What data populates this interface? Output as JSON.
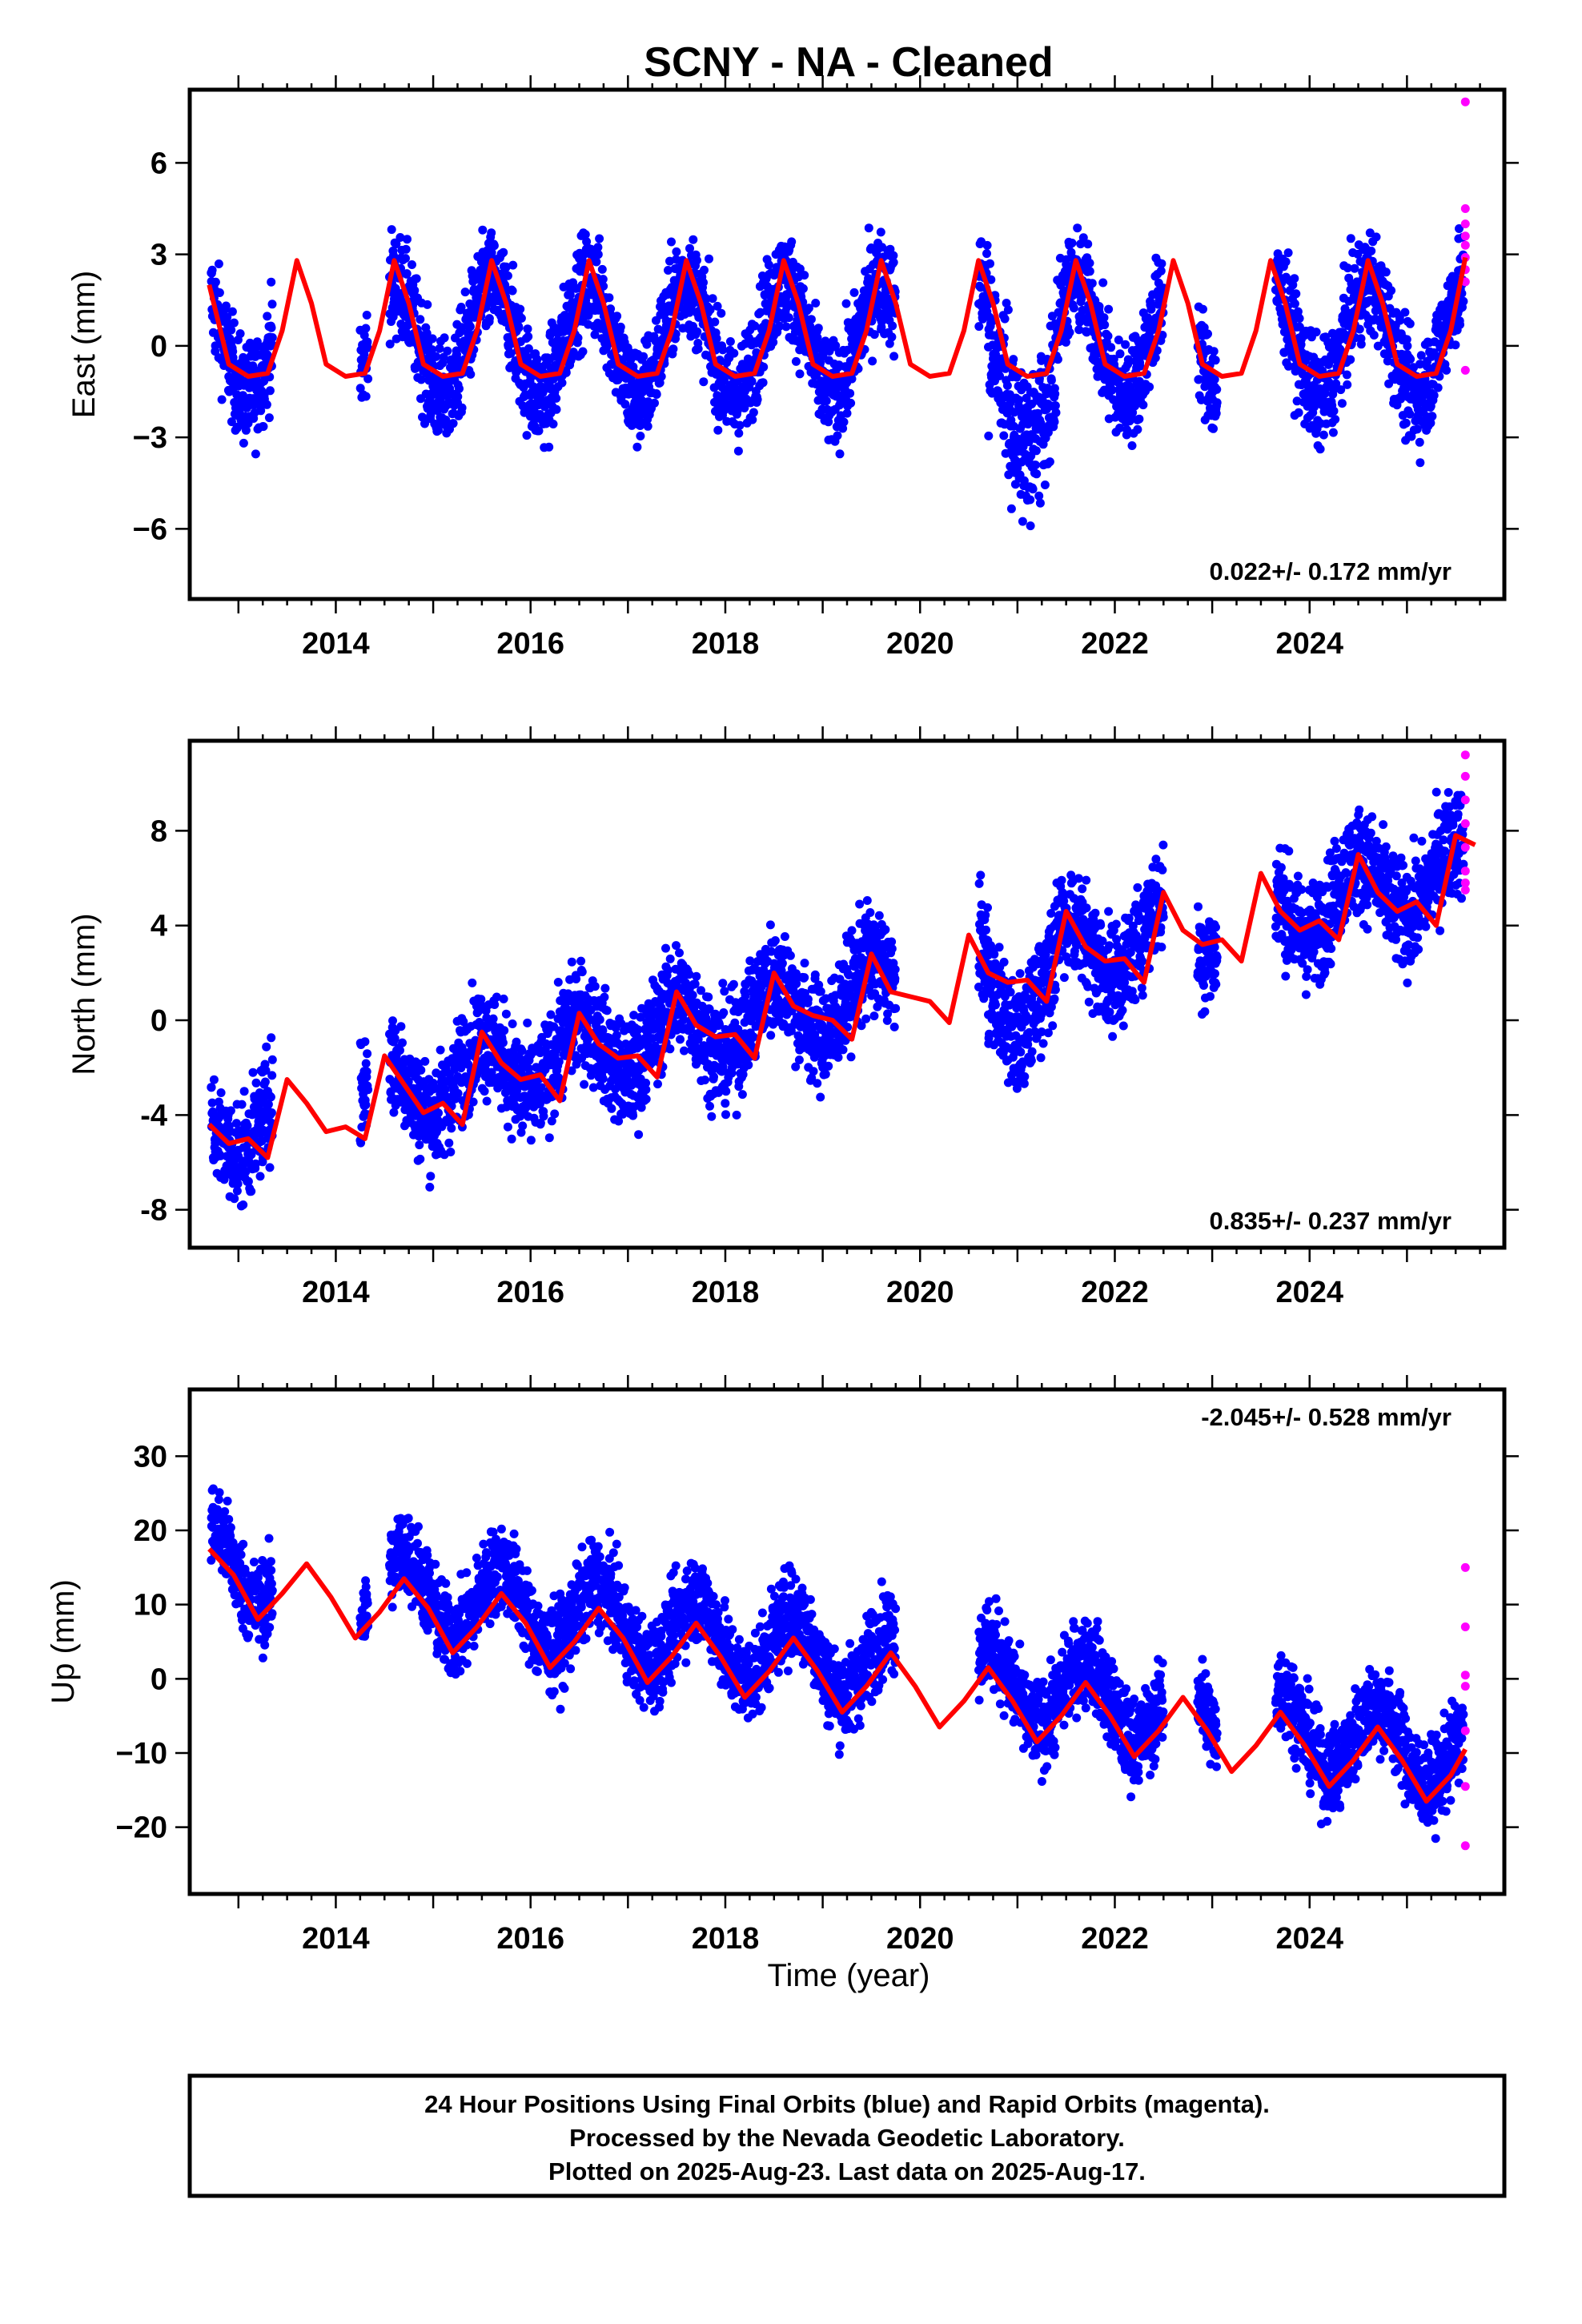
{
  "title": "SCNY  - NA - Cleaned",
  "xlabel": "Time (year)",
  "footer": [
    "24 Hour Positions Using Final Orbits (blue) and Rapid Orbits (magenta).",
    "Processed by the Nevada Geodetic Laboratory.",
    "Plotted on 2025-Aug-23. Last data on 2025-Aug-17."
  ],
  "colors": {
    "final": "#0000ff",
    "rapid": "#ff00ff",
    "model": "#ff0000",
    "frame": "#000000"
  },
  "chart_data": [
    {
      "type": "scatter",
      "component": "East",
      "ylabel": "East (mm)",
      "rate_text": "0.022+/- 0.172 mm/yr",
      "xlim": [
        2012.5,
        2026.0
      ],
      "ylim": [
        -8.3,
        8.4
      ],
      "xticks": [
        2014,
        2016,
        2018,
        2020,
        2022,
        2024
      ],
      "xtick_labels": [
        "2014",
        "2016",
        "2018",
        "2020",
        "2022",
        "2024"
      ],
      "yticks": [
        -6,
        -3,
        0,
        3,
        6
      ],
      "ytick_labels": [
        "−6",
        "−3",
        "0",
        "3",
        "6"
      ],
      "model": {
        "x": [
          2012.7,
          2012.9,
          2013.1,
          2013.3,
          2013.45,
          2013.6,
          2013.75,
          2013.9,
          2014.1,
          2014.3,
          2014.45,
          2014.6,
          2014.75,
          2014.9,
          2015.1,
          2015.3,
          2015.45,
          2015.6,
          2015.75,
          2015.9,
          2016.1,
          2016.3,
          2016.45,
          2016.6,
          2016.75,
          2016.9,
          2017.1,
          2017.3,
          2017.45,
          2017.6,
          2017.75,
          2017.9,
          2018.1,
          2018.3,
          2018.45,
          2018.6,
          2018.75,
          2018.9,
          2019.1,
          2019.3,
          2019.45,
          2019.6,
          2019.75,
          2019.9,
          2020.1,
          2020.3,
          2020.45,
          2020.6,
          2020.75,
          2020.9,
          2021.1,
          2021.3,
          2021.45,
          2021.6,
          2021.75,
          2021.9,
          2022.1,
          2022.3,
          2022.45,
          2022.6,
          2022.75,
          2022.9,
          2023.1,
          2023.3,
          2023.45,
          2023.6,
          2023.75,
          2023.9,
          2024.1,
          2024.3,
          2024.45,
          2024.6,
          2024.75,
          2024.9,
          2025.1,
          2025.3,
          2025.45,
          2025.6
        ],
        "y": [
          2.0,
          -0.6,
          -1.0,
          -0.9,
          0.5,
          2.8,
          1.4,
          -0.6,
          -1.0,
          -0.9,
          0.5,
          2.8,
          1.4,
          -0.6,
          -1.0,
          -0.9,
          0.5,
          2.8,
          1.4,
          -0.6,
          -1.0,
          -0.9,
          0.5,
          2.8,
          1.4,
          -0.6,
          -1.0,
          -0.9,
          0.5,
          2.8,
          1.4,
          -0.6,
          -1.0,
          -0.9,
          0.5,
          2.8,
          1.4,
          -0.6,
          -1.0,
          -0.9,
          0.5,
          2.8,
          1.4,
          -0.6,
          -1.0,
          -0.9,
          0.5,
          2.8,
          1.4,
          -0.6,
          -1.0,
          -0.9,
          0.5,
          2.8,
          1.4,
          -0.6,
          -1.0,
          -0.9,
          0.5,
          2.8,
          1.4,
          -0.6,
          -1.0,
          -0.9,
          0.5,
          2.8,
          1.4,
          -0.6,
          -1.0,
          -0.9,
          0.5,
          2.8,
          1.4,
          -0.6,
          -1.0,
          -0.9,
          0.5,
          2.9
        ]
      },
      "gaps": [
        [
          2013.35,
          2014.25
        ],
        [
          2014.33,
          2014.55
        ],
        [
          2019.75,
          2020.6
        ],
        [
          2022.5,
          2022.85
        ],
        [
          2023.05,
          2023.65
        ]
      ],
      "scatter_params": {
        "amp": 1.85,
        "phase_peak": 0.6,
        "noise": 1.2,
        "trend": 0.0,
        "offset": 0.2,
        "dip": {
          "range": [
            2020.7,
            2021.4
          ],
          "depth": 3.0
        }
      },
      "rapid_y": [
        8.0,
        4.5,
        4.0,
        3.6,
        3.3,
        2.9,
        2.5,
        2.1,
        -0.8
      ]
    },
    {
      "type": "scatter",
      "component": "North",
      "ylabel": "North (mm)",
      "rate_text": "0.835+/- 0.237 mm/yr",
      "xlim": [
        2012.5,
        2026.0
      ],
      "ylim": [
        -9.6,
        11.8
      ],
      "xticks": [
        2014,
        2016,
        2018,
        2020,
        2022,
        2024
      ],
      "xtick_labels": [
        "2014",
        "2016",
        "2018",
        "2020",
        "2022",
        "2024"
      ],
      "yticks": [
        -8,
        -4,
        0,
        4,
        8
      ],
      "ytick_labels": [
        "-8",
        "-4",
        "0",
        "4",
        "8"
      ],
      "model": {
        "x": [
          2012.7,
          2012.9,
          2013.1,
          2013.3,
          2013.5,
          2013.7,
          2013.9,
          2014.1,
          2014.3,
          2014.5,
          2014.7,
          2014.9,
          2015.1,
          2015.3,
          2015.5,
          2015.7,
          2015.9,
          2016.1,
          2016.3,
          2016.5,
          2016.7,
          2016.9,
          2017.1,
          2017.3,
          2017.5,
          2017.7,
          2017.9,
          2018.1,
          2018.3,
          2018.5,
          2018.7,
          2018.9,
          2019.1,
          2019.3,
          2019.5,
          2019.7,
          2019.9,
          2020.1,
          2020.3,
          2020.5,
          2020.7,
          2020.9,
          2021.1,
          2021.3,
          2021.5,
          2021.7,
          2021.9,
          2022.1,
          2022.3,
          2022.5,
          2022.7,
          2022.9,
          2023.1,
          2023.3,
          2023.5,
          2023.7,
          2023.9,
          2024.1,
          2024.3,
          2024.5,
          2024.7,
          2024.9,
          2025.1,
          2025.3,
          2025.5,
          2025.7
        ],
        "y": [
          -4.4,
          -5.2,
          -5.0,
          -5.8,
          -2.5,
          -3.5,
          -4.7,
          -4.5,
          -5.0,
          -1.5,
          -2.7,
          -3.9,
          -3.5,
          -4.4,
          -0.5,
          -1.8,
          -2.5,
          -2.3,
          -3.4,
          0.3,
          -1.0,
          -1.6,
          -1.5,
          -2.4,
          1.2,
          -0.2,
          -0.7,
          -0.6,
          -1.6,
          2.0,
          0.6,
          0.2,
          0.0,
          -0.8,
          2.8,
          1.2,
          1.0,
          0.8,
          -0.1,
          3.6,
          2.0,
          1.6,
          1.7,
          0.8,
          4.6,
          3.1,
          2.5,
          2.6,
          1.6,
          5.4,
          3.8,
          3.2,
          3.4,
          2.5,
          6.2,
          4.6,
          3.8,
          4.2,
          3.4,
          7.0,
          5.4,
          4.6,
          5.0,
          4.0,
          7.8,
          7.4
        ]
      },
      "gaps": [
        [
          2013.35,
          2014.25
        ],
        [
          2014.33,
          2014.55
        ],
        [
          2019.75,
          2020.6
        ],
        [
          2022.5,
          2022.85
        ],
        [
          2023.05,
          2023.65
        ]
      ],
      "scatter_params": {
        "amp": 1.4,
        "phase_peak": 0.5,
        "noise": 1.6,
        "trend": 0.835,
        "offset": -4.5,
        "dip": {
          "range": [
            2020.7,
            2021.4
          ],
          "depth": 2.5
        }
      },
      "rapid_y": [
        11.2,
        10.3,
        9.3,
        8.3,
        7.3,
        6.3,
        5.8,
        5.5
      ]
    },
    {
      "type": "scatter",
      "component": "Up",
      "ylabel": "Up (mm)",
      "rate_text": "-2.045+/- 0.528 mm/yr",
      "xlim": [
        2012.5,
        2026.0
      ],
      "ylim": [
        -29,
        39
      ],
      "xticks": [
        2014,
        2016,
        2018,
        2020,
        2022,
        2024
      ],
      "xtick_labels": [
        "2014",
        "2016",
        "2018",
        "2020",
        "2022",
        "2024"
      ],
      "yticks": [
        -20,
        -10,
        0,
        10,
        20,
        30
      ],
      "ytick_labels": [
        "−20",
        "−10",
        "0",
        "10",
        "20",
        "30"
      ],
      "model": {
        "x": [
          2012.7,
          2012.95,
          2013.2,
          2013.45,
          2013.7,
          2013.95,
          2014.2,
          2014.45,
          2014.7,
          2014.95,
          2015.2,
          2015.45,
          2015.7,
          2015.95,
          2016.2,
          2016.45,
          2016.7,
          2016.95,
          2017.2,
          2017.45,
          2017.7,
          2017.95,
          2018.2,
          2018.45,
          2018.7,
          2018.95,
          2019.2,
          2019.45,
          2019.7,
          2019.95,
          2020.2,
          2020.45,
          2020.7,
          2020.95,
          2021.2,
          2021.45,
          2021.7,
          2021.95,
          2022.2,
          2022.45,
          2022.7,
          2022.95,
          2023.2,
          2023.45,
          2023.7,
          2023.95,
          2024.2,
          2024.45,
          2024.7,
          2024.95,
          2025.2,
          2025.45,
          2025.6
        ],
        "y": [
          17.5,
          14.0,
          8.0,
          11.5,
          15.5,
          11.0,
          5.5,
          9.0,
          13.5,
          9.5,
          3.5,
          7.0,
          11.5,
          7.5,
          1.5,
          5.0,
          9.5,
          5.5,
          -0.5,
          3.0,
          7.5,
          3.0,
          -2.5,
          1.0,
          5.5,
          1.0,
          -4.5,
          -1.0,
          3.5,
          -1.0,
          -6.5,
          -3.0,
          1.5,
          -3.0,
          -8.5,
          -5.0,
          -0.5,
          -5.0,
          -10.5,
          -7.0,
          -2.5,
          -7.0,
          -12.5,
          -9.0,
          -4.5,
          -9.0,
          -14.5,
          -11.0,
          -6.5,
          -11.0,
          -16.5,
          -13.0,
          -9.5
        ]
      },
      "gaps": [
        [
          2013.35,
          2014.25
        ],
        [
          2014.33,
          2014.55
        ],
        [
          2019.75,
          2020.6
        ],
        [
          2022.5,
          2022.85
        ],
        [
          2023.05,
          2023.65
        ]
      ],
      "scatter_params": {
        "amp": 5.0,
        "phase_peak": 0.7,
        "noise": 4.2,
        "trend": -2.045,
        "offset": 16.0,
        "dip": null
      },
      "rapid_y": [
        15.0,
        7.0,
        0.5,
        -1.0,
        -7.0,
        -14.5,
        -22.5
      ]
    }
  ]
}
